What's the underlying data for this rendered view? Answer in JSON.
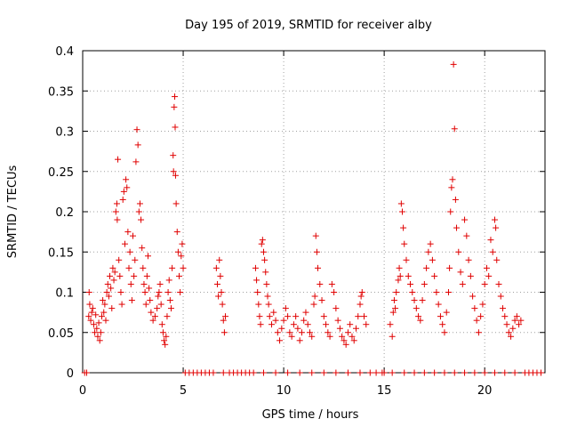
{
  "chart_data": {
    "type": "scatter",
    "title": "Day 195 of 2019, SRMTID for receiver alby",
    "xlabel": "GPS time / hours",
    "ylabel": "SRMTID / TECUs",
    "xlim": [
      0,
      23
    ],
    "ylim": [
      0,
      0.4
    ],
    "grid": true,
    "x_ticks": [
      {
        "value": 0,
        "label": "0"
      },
      {
        "value": 5,
        "label": "5"
      },
      {
        "value": 10,
        "label": "10"
      },
      {
        "value": 15,
        "label": "15"
      },
      {
        "value": 20,
        "label": "20"
      }
    ],
    "y_ticks": [
      {
        "value": 0,
        "label": "0"
      },
      {
        "value": 0.05,
        "label": "0.05"
      },
      {
        "value": 0.1,
        "label": "0.1"
      },
      {
        "value": 0.15,
        "label": "0.15"
      },
      {
        "value": 0.2,
        "label": "0.2"
      },
      {
        "value": 0.25,
        "label": "0.25"
      },
      {
        "value": 0.3,
        "label": "0.3"
      },
      {
        "value": 0.35,
        "label": "0.35"
      },
      {
        "value": 0.4,
        "label": "0.4"
      }
    ],
    "series": [
      {
        "name": "SRMTID",
        "color": "#e00000",
        "marker": "plus",
        "points": [
          [
            0.1,
            0
          ],
          [
            0.2,
            0
          ],
          [
            0.3,
            0.07
          ],
          [
            0.32,
            0.1
          ],
          [
            0.35,
            0.085
          ],
          [
            0.4,
            0.065
          ],
          [
            0.45,
            0.075
          ],
          [
            0.5,
            0.08
          ],
          [
            0.55,
            0.06
          ],
          [
            0.6,
            0.05
          ],
          [
            0.65,
            0.072
          ],
          [
            0.7,
            0.055
          ],
          [
            0.75,
            0.045
          ],
          [
            0.8,
            0.062
          ],
          [
            0.85,
            0.04
          ],
          [
            0.9,
            0.05
          ],
          [
            0.95,
            0.07
          ],
          [
            1.0,
            0.09
          ],
          [
            1.05,
            0.075
          ],
          [
            1.1,
            0.085
          ],
          [
            1.15,
            0.065
          ],
          [
            1.2,
            0.1
          ],
          [
            1.25,
            0.11
          ],
          [
            1.3,
            0.095
          ],
          [
            1.35,
            0.12
          ],
          [
            1.4,
            0.105
          ],
          [
            1.45,
            0.08
          ],
          [
            1.5,
            0.13
          ],
          [
            1.55,
            0.115
          ],
          [
            1.6,
            0.125
          ],
          [
            1.65,
            0.2
          ],
          [
            1.7,
            0.21
          ],
          [
            1.72,
            0.19
          ],
          [
            1.75,
            0.265
          ],
          [
            1.8,
            0.14
          ],
          [
            1.85,
            0.12
          ],
          [
            1.9,
            0.1
          ],
          [
            1.95,
            0.085
          ],
          [
            2.0,
            0.215
          ],
          [
            2.05,
            0.225
          ],
          [
            2.1,
            0.16
          ],
          [
            2.15,
            0.24
          ],
          [
            2.2,
            0.23
          ],
          [
            2.25,
            0.175
          ],
          [
            2.3,
            0.13
          ],
          [
            2.35,
            0.15
          ],
          [
            2.4,
            0.11
          ],
          [
            2.45,
            0.09
          ],
          [
            2.5,
            0.17
          ],
          [
            2.55,
            0.12
          ],
          [
            2.6,
            0.14
          ],
          [
            2.65,
            0.262
          ],
          [
            2.7,
            0.302
          ],
          [
            2.75,
            0.283
          ],
          [
            2.8,
            0.2
          ],
          [
            2.85,
            0.21
          ],
          [
            2.9,
            0.19
          ],
          [
            2.95,
            0.155
          ],
          [
            3.0,
            0.13
          ],
          [
            3.05,
            0.11
          ],
          [
            3.1,
            0.1
          ],
          [
            3.15,
            0.085
          ],
          [
            3.2,
            0.12
          ],
          [
            3.25,
            0.145
          ],
          [
            3.3,
            0.105
          ],
          [
            3.35,
            0.09
          ],
          [
            3.4,
            0.075
          ],
          [
            3.5,
            0.065
          ],
          [
            3.6,
            0.07
          ],
          [
            3.7,
            0.08
          ],
          [
            3.75,
            0.095
          ],
          [
            3.8,
            0.1
          ],
          [
            3.85,
            0.11
          ],
          [
            3.9,
            0.085
          ],
          [
            3.95,
            0.06
          ],
          [
            4.0,
            0.05
          ],
          [
            4.05,
            0.04
          ],
          [
            4.1,
            0.035
          ],
          [
            4.15,
            0.045
          ],
          [
            4.2,
            0.07
          ],
          [
            4.25,
            0.1
          ],
          [
            4.3,
            0.115
          ],
          [
            4.35,
            0.09
          ],
          [
            4.4,
            0.08
          ],
          [
            4.45,
            0.13
          ],
          [
            4.5,
            0.27
          ],
          [
            4.52,
            0.25
          ],
          [
            4.55,
            0.33
          ],
          [
            4.58,
            0.343
          ],
          [
            4.6,
            0.305
          ],
          [
            4.62,
            0.245
          ],
          [
            4.65,
            0.21
          ],
          [
            4.7,
            0.175
          ],
          [
            4.75,
            0.15
          ],
          [
            4.8,
            0.12
          ],
          [
            4.85,
            0.1
          ],
          [
            4.9,
            0.145
          ],
          [
            4.95,
            0.16
          ],
          [
            5.0,
            0.13
          ],
          [
            5.1,
            0
          ],
          [
            5.3,
            0
          ],
          [
            5.5,
            0
          ],
          [
            5.7,
            0
          ],
          [
            5.9,
            0
          ],
          [
            6.1,
            0
          ],
          [
            6.3,
            0
          ],
          [
            6.5,
            0
          ],
          [
            6.65,
            0.13
          ],
          [
            6.7,
            0.11
          ],
          [
            6.75,
            0.095
          ],
          [
            6.8,
            0.14
          ],
          [
            6.85,
            0.12
          ],
          [
            6.9,
            0.1
          ],
          [
            6.95,
            0.085
          ],
          [
            7.0,
            0.065
          ],
          [
            7.05,
            0.05
          ],
          [
            7.1,
            0.07
          ],
          [
            7.0,
            0
          ],
          [
            7.3,
            0
          ],
          [
            7.5,
            0
          ],
          [
            7.7,
            0
          ],
          [
            7.9,
            0
          ],
          [
            8.1,
            0
          ],
          [
            8.3,
            0
          ],
          [
            8.5,
            0
          ],
          [
            8.6,
            0.13
          ],
          [
            8.65,
            0.115
          ],
          [
            8.7,
            0.1
          ],
          [
            8.75,
            0.085
          ],
          [
            8.8,
            0.07
          ],
          [
            8.85,
            0.06
          ],
          [
            8.9,
            0.16
          ],
          [
            8.95,
            0.165
          ],
          [
            9.0,
            0.15
          ],
          [
            9.05,
            0.14
          ],
          [
            9.1,
            0.125
          ],
          [
            9.15,
            0.11
          ],
          [
            9.2,
            0.095
          ],
          [
            9.25,
            0.085
          ],
          [
            9.3,
            0.07
          ],
          [
            9.4,
            0.06
          ],
          [
            9.5,
            0.075
          ],
          [
            9.6,
            0.065
          ],
          [
            9.7,
            0.05
          ],
          [
            9.8,
            0.04
          ],
          [
            9.9,
            0.055
          ],
          [
            10.0,
            0.065
          ],
          [
            10.1,
            0.08
          ],
          [
            10.2,
            0.07
          ],
          [
            10.3,
            0.05
          ],
          [
            10.4,
            0.045
          ],
          [
            10.5,
            0.06
          ],
          [
            10.6,
            0.07
          ],
          [
            10.7,
            0.055
          ],
          [
            10.8,
            0.04
          ],
          [
            10.9,
            0.05
          ],
          [
            11.0,
            0.065
          ],
          [
            11.1,
            0.075
          ],
          [
            11.2,
            0.06
          ],
          [
            11.3,
            0.05
          ],
          [
            11.4,
            0.045
          ],
          [
            11.5,
            0.085
          ],
          [
            11.55,
            0.095
          ],
          [
            11.6,
            0.17
          ],
          [
            11.65,
            0.15
          ],
          [
            11.7,
            0.13
          ],
          [
            11.8,
            0.11
          ],
          [
            11.9,
            0.09
          ],
          [
            12.0,
            0.07
          ],
          [
            12.1,
            0.06
          ],
          [
            12.2,
            0.05
          ],
          [
            12.3,
            0.045
          ],
          [
            12.4,
            0.11
          ],
          [
            12.5,
            0.1
          ],
          [
            12.6,
            0.08
          ],
          [
            12.7,
            0.065
          ],
          [
            12.8,
            0.055
          ],
          [
            12.9,
            0.045
          ],
          [
            13.0,
            0.04
          ],
          [
            13.1,
            0.035
          ],
          [
            13.2,
            0.05
          ],
          [
            13.3,
            0.06
          ],
          [
            13.4,
            0.045
          ],
          [
            13.5,
            0.04
          ],
          [
            13.6,
            0.055
          ],
          [
            13.7,
            0.07
          ],
          [
            13.8,
            0.085
          ],
          [
            13.85,
            0.095
          ],
          [
            13.9,
            0.1
          ],
          [
            14.0,
            0.07
          ],
          [
            14.1,
            0.06
          ],
          [
            9.0,
            0
          ],
          [
            9.6,
            0
          ],
          [
            10.2,
            0
          ],
          [
            10.8,
            0
          ],
          [
            11.4,
            0
          ],
          [
            12.0,
            0
          ],
          [
            12.6,
            0
          ],
          [
            13.2,
            0
          ],
          [
            13.8,
            0
          ],
          [
            14.3,
            0
          ],
          [
            14.6,
            0
          ],
          [
            14.9,
            0
          ],
          [
            15.0,
            0
          ],
          [
            15.3,
            0.06
          ],
          [
            15.4,
            0.045
          ],
          [
            15.45,
            0.075
          ],
          [
            15.5,
            0.09
          ],
          [
            15.55,
            0.08
          ],
          [
            15.6,
            0.1
          ],
          [
            15.7,
            0.115
          ],
          [
            15.75,
            0.13
          ],
          [
            15.8,
            0.12
          ],
          [
            15.85,
            0.21
          ],
          [
            15.9,
            0.2
          ],
          [
            15.95,
            0.18
          ],
          [
            16.0,
            0.16
          ],
          [
            16.1,
            0.14
          ],
          [
            16.2,
            0.12
          ],
          [
            16.3,
            0.11
          ],
          [
            16.4,
            0.1
          ],
          [
            16.5,
            0.09
          ],
          [
            16.6,
            0.08
          ],
          [
            16.7,
            0.07
          ],
          [
            16.8,
            0.065
          ],
          [
            16.9,
            0.09
          ],
          [
            17.0,
            0.11
          ],
          [
            17.1,
            0.13
          ],
          [
            17.2,
            0.15
          ],
          [
            17.3,
            0.16
          ],
          [
            17.4,
            0.14
          ],
          [
            17.5,
            0.12
          ],
          [
            17.6,
            0.1
          ],
          [
            17.7,
            0.085
          ],
          [
            17.8,
            0.07
          ],
          [
            17.9,
            0.06
          ],
          [
            18.0,
            0.05
          ],
          [
            18.1,
            0.075
          ],
          [
            18.2,
            0.1
          ],
          [
            18.25,
            0.13
          ],
          [
            18.3,
            0.2
          ],
          [
            18.35,
            0.23
          ],
          [
            18.4,
            0.24
          ],
          [
            18.45,
            0.383
          ],
          [
            18.5,
            0.303
          ],
          [
            18.55,
            0.215
          ],
          [
            18.6,
            0.18
          ],
          [
            18.7,
            0.15
          ],
          [
            18.8,
            0.125
          ],
          [
            18.9,
            0.11
          ],
          [
            19.0,
            0.19
          ],
          [
            19.1,
            0.17
          ],
          [
            19.2,
            0.14
          ],
          [
            19.3,
            0.12
          ],
          [
            19.4,
            0.095
          ],
          [
            19.5,
            0.08
          ],
          [
            19.6,
            0.065
          ],
          [
            19.7,
            0.05
          ],
          [
            19.8,
            0.07
          ],
          [
            19.9,
            0.085
          ],
          [
            20.0,
            0.11
          ],
          [
            20.1,
            0.13
          ],
          [
            20.2,
            0.12
          ],
          [
            20.3,
            0.165
          ],
          [
            20.4,
            0.15
          ],
          [
            20.5,
            0.19
          ],
          [
            20.55,
            0.18
          ],
          [
            20.6,
            0.14
          ],
          [
            20.7,
            0.11
          ],
          [
            20.8,
            0.095
          ],
          [
            20.9,
            0.08
          ],
          [
            21.0,
            0.07
          ],
          [
            21.1,
            0.06
          ],
          [
            21.2,
            0.05
          ],
          [
            21.3,
            0.045
          ],
          [
            21.4,
            0.055
          ],
          [
            21.5,
            0.065
          ],
          [
            21.6,
            0.07
          ],
          [
            21.7,
            0.06
          ],
          [
            21.8,
            0.065
          ],
          [
            15.4,
            0
          ],
          [
            16.0,
            0
          ],
          [
            16.5,
            0
          ],
          [
            17.0,
            0
          ],
          [
            17.5,
            0
          ],
          [
            18.0,
            0
          ],
          [
            18.5,
            0
          ],
          [
            19.0,
            0
          ],
          [
            19.5,
            0
          ],
          [
            20.0,
            0
          ],
          [
            20.5,
            0
          ],
          [
            21.0,
            0
          ],
          [
            21.5,
            0
          ],
          [
            22.0,
            0
          ],
          [
            22.2,
            0
          ],
          [
            22.4,
            0
          ],
          [
            22.6,
            0
          ],
          [
            22.8,
            0
          ]
        ]
      }
    ]
  }
}
